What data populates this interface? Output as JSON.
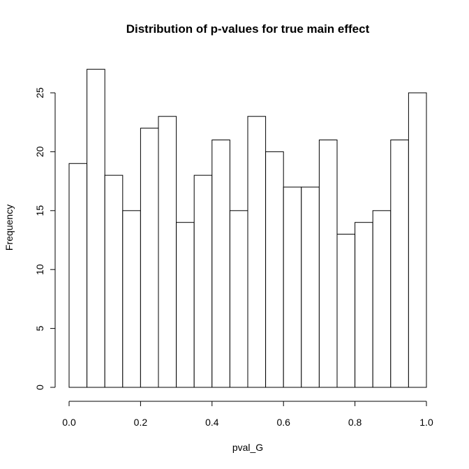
{
  "chart_data": {
    "type": "bar",
    "title": "Distribution of p-values for true main effect",
    "xlabel": "pval_G",
    "ylabel": "Frequency",
    "bins": [
      [
        0.0,
        0.05
      ],
      [
        0.05,
        0.1
      ],
      [
        0.1,
        0.15
      ],
      [
        0.15,
        0.2
      ],
      [
        0.2,
        0.25
      ],
      [
        0.25,
        0.3
      ],
      [
        0.3,
        0.35
      ],
      [
        0.35,
        0.4
      ],
      [
        0.4,
        0.45
      ],
      [
        0.45,
        0.5
      ],
      [
        0.5,
        0.55
      ],
      [
        0.55,
        0.6
      ],
      [
        0.6,
        0.65
      ],
      [
        0.65,
        0.7
      ],
      [
        0.7,
        0.75
      ],
      [
        0.75,
        0.8
      ],
      [
        0.8,
        0.85
      ],
      [
        0.85,
        0.9
      ],
      [
        0.9,
        0.95
      ],
      [
        0.95,
        1.0
      ]
    ],
    "values": [
      19,
      27,
      18,
      15,
      22,
      23,
      14,
      18,
      21,
      15,
      23,
      20,
      17,
      17,
      21,
      13,
      14,
      15,
      21,
      25
    ],
    "xlim": [
      0.0,
      1.0
    ],
    "ylim": [
      0,
      25
    ],
    "x_ticks": [
      0.0,
      0.2,
      0.4,
      0.6,
      0.8,
      1.0
    ],
    "x_tick_labels": [
      "0.0",
      "0.2",
      "0.4",
      "0.6",
      "0.8",
      "1.0"
    ],
    "y_ticks": [
      0,
      5,
      10,
      15,
      20,
      25
    ],
    "y_tick_labels": [
      "0",
      "5",
      "10",
      "15",
      "20",
      "25"
    ],
    "grid": false,
    "legend": "none"
  }
}
